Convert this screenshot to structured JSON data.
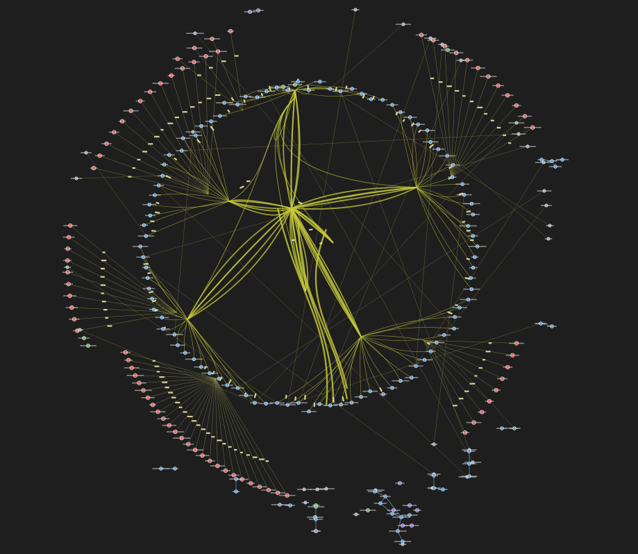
{
  "graph": {
    "kind": "radial-dependency-graph",
    "colors": {
      "background": "#1e1e1e",
      "edge": "#c8cc3a",
      "edge_faint": "#9a9c4a",
      "label_box": "#e6e6a6",
      "node_blue": "#3a8fd9",
      "node_red": "#e04a4a",
      "node_gray": "#8a9aa8",
      "node_green": "#4caf50",
      "node_purple": "#8a5ad6",
      "node_stroke": "#ffffff"
    },
    "counts": {
      "inner_ring": 96,
      "outer_red": 70,
      "outer_gray": 26,
      "clusters": 9
    }
  }
}
